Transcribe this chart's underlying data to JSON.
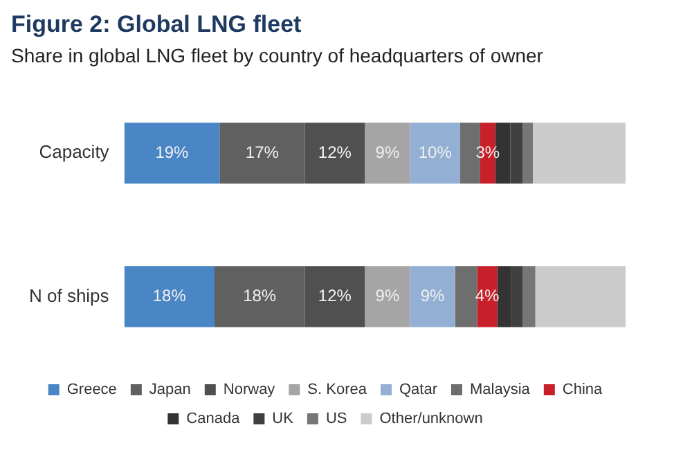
{
  "chart_data": {
    "type": "bar",
    "orientation": "horizontal",
    "stacked": true,
    "title": "Figure 2: Global LNG fleet",
    "subtitle": "Share in global LNG fleet by country of headquarters of owner",
    "categories": [
      "Capacity",
      "N of ships"
    ],
    "series": [
      {
        "name": "Greece",
        "color": "#4a86c5",
        "values": [
          19,
          18
        ],
        "value_labels": [
          "19%",
          "18%"
        ]
      },
      {
        "name": "Japan",
        "color": "#606060",
        "values": [
          17,
          18
        ],
        "value_labels": [
          "17%",
          "18%"
        ]
      },
      {
        "name": "Norway",
        "color": "#505050",
        "values": [
          12,
          12
        ],
        "value_labels": [
          "12%",
          "12%"
        ]
      },
      {
        "name": "S. Korea",
        "color": "#a5a5a5",
        "values": [
          9,
          9
        ],
        "value_labels": [
          "9%",
          "9%"
        ]
      },
      {
        "name": "Qatar",
        "color": "#94afd4",
        "values": [
          10,
          9
        ],
        "value_labels": [
          "10%",
          "9%"
        ]
      },
      {
        "name": "Malaysia",
        "color": "#6e6e6e",
        "values": [
          4,
          4.4
        ]
      },
      {
        "name": "China",
        "color": "#c8202a",
        "values": [
          3,
          4
        ],
        "value_labels": [
          "3%",
          "4%"
        ]
      },
      {
        "name": "Canada",
        "color": "#333333",
        "values": [
          3,
          2.7
        ]
      },
      {
        "name": "UK",
        "color": "#404040",
        "values": [
          2.5,
          2.4
        ]
      },
      {
        "name": "US",
        "color": "#767676",
        "values": [
          2,
          2.5
        ]
      },
      {
        "name": "Other/unknown",
        "color": "#cccccc",
        "values": [
          18.5,
          18
        ]
      }
    ],
    "legend": "bottom"
  }
}
